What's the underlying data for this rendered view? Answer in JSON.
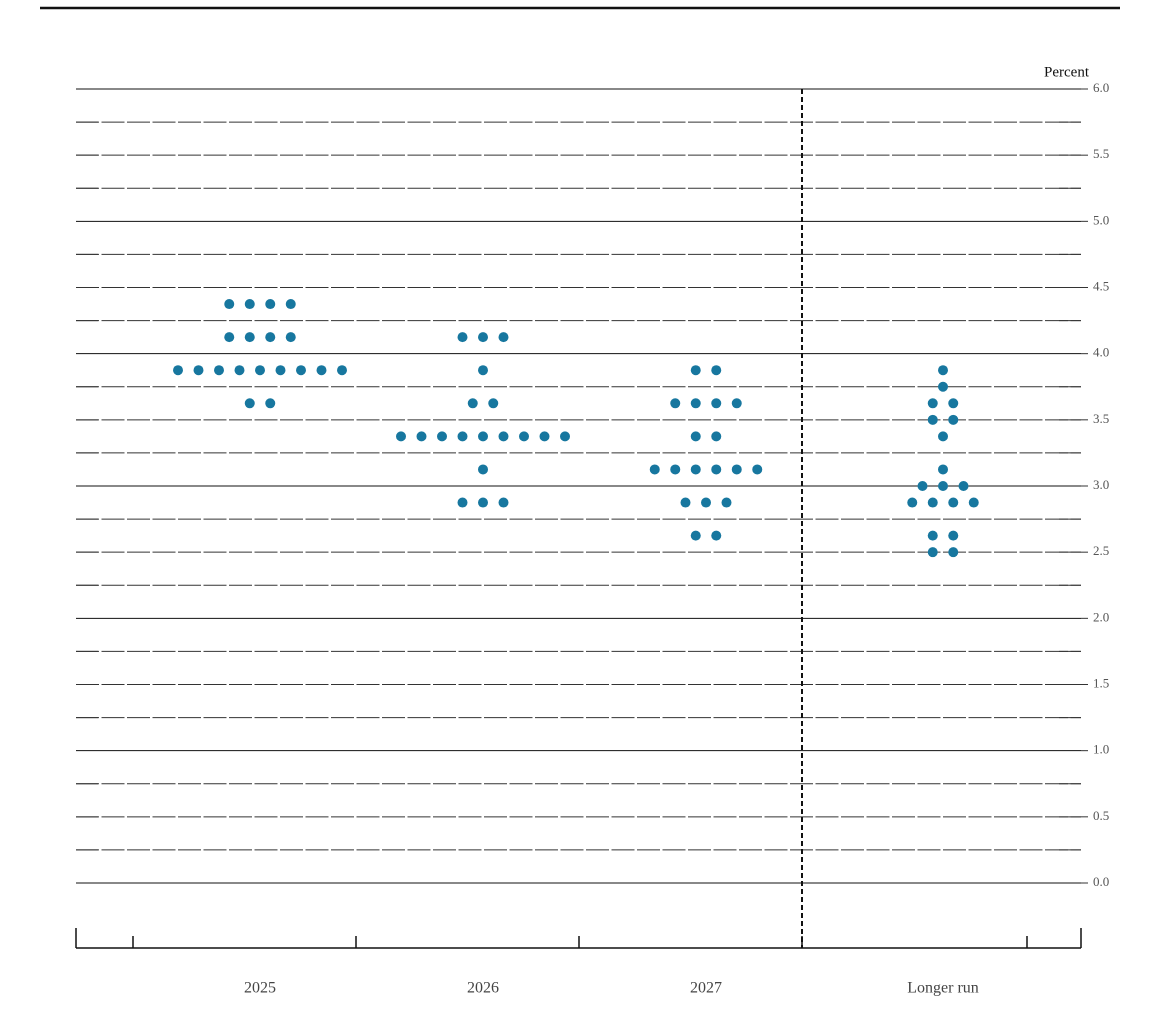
{
  "chart_data": {
    "type": "dot",
    "y_label": "Percent",
    "categories": [
      "2025",
      "2026",
      "2027",
      "Longer run"
    ],
    "color": "#17779f",
    "values": [
      [
        4.375,
        4.375,
        4.375,
        4.375,
        4.125,
        4.125,
        4.125,
        4.125,
        3.875,
        3.875,
        3.875,
        3.875,
        3.875,
        3.875,
        3.875,
        3.875,
        3.875,
        3.625,
        3.625
      ],
      [
        4.125,
        4.125,
        4.125,
        3.875,
        3.625,
        3.625,
        3.375,
        3.375,
        3.375,
        3.375,
        3.375,
        3.375,
        3.375,
        3.375,
        3.375,
        3.125,
        2.875,
        2.875,
        2.875
      ],
      [
        3.875,
        3.875,
        3.625,
        3.625,
        3.625,
        3.625,
        3.375,
        3.375,
        3.125,
        3.125,
        3.125,
        3.125,
        3.125,
        3.125,
        2.875,
        2.875,
        2.875,
        2.625,
        2.625
      ],
      [
        3.875,
        3.75,
        3.625,
        3.625,
        3.5,
        3.5,
        3.375,
        3.125,
        3.0,
        3.0,
        3.0,
        2.875,
        2.875,
        2.875,
        2.875,
        2.625,
        2.625,
        2.5,
        2.5
      ]
    ],
    "ylim": [
      0,
      6
    ],
    "yticks": [
      {
        "value": 0,
        "label": "0.0"
      },
      {
        "value": 0.5,
        "label": "0.5"
      },
      {
        "value": 1,
        "label": "1.0"
      },
      {
        "value": 1.5,
        "label": "1.5"
      },
      {
        "value": 2,
        "label": "2.0"
      },
      {
        "value": 2.5,
        "label": "2.5"
      },
      {
        "value": 3,
        "label": "3.0"
      },
      {
        "value": 3.5,
        "label": "3.5"
      },
      {
        "value": 4,
        "label": "4.0"
      },
      {
        "value": 4.5,
        "label": "4.5"
      },
      {
        "value": 5,
        "label": "5.0"
      },
      {
        "value": 5.5,
        "label": "5.5"
      },
      {
        "value": 6,
        "label": "6.0"
      }
    ],
    "minor_yticks": [
      0.25,
      0.75,
      1.25,
      1.75,
      2.25,
      2.75,
      3.25,
      3.75,
      4.25,
      4.75,
      5.25,
      5.75
    ],
    "grid": true
  }
}
